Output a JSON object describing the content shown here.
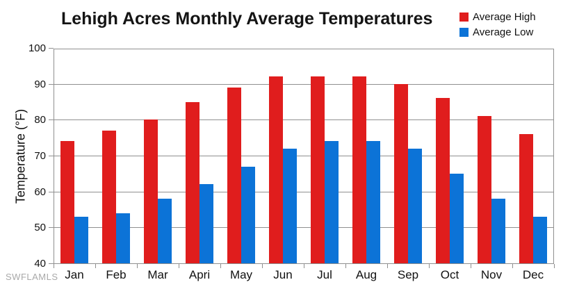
{
  "title": "Lehigh Acres Monthly Average Temperatures",
  "watermark": "SWFLAMLS",
  "chart_data": {
    "type": "bar",
    "title": "Lehigh Acres Monthly Average Temperatures",
    "xlabel": "",
    "ylabel": "Temperature (°F)",
    "categories": [
      "Jan",
      "Feb",
      "Mar",
      "Apri",
      "May",
      "Jun",
      "Jul",
      "Aug",
      "Sep",
      "Oct",
      "Nov",
      "Dec"
    ],
    "series": [
      {
        "name": "Average High",
        "color": "#e01d1d",
        "values": [
          74,
          77,
          80,
          85,
          89,
          92,
          92,
          92,
          90,
          86,
          81,
          76
        ]
      },
      {
        "name": "Average Low",
        "color": "#0c73d7",
        "values": [
          53,
          54,
          58,
          62,
          67,
          72,
          74,
          74,
          72,
          65,
          58,
          53
        ]
      }
    ],
    "ylim": [
      40,
      100
    ],
    "ytick_step": 10,
    "yticks": [
      40,
      50,
      60,
      70,
      80,
      90,
      100
    ],
    "grid": true,
    "legend_position": "top-right"
  },
  "colors": {
    "grid": "#8f8f8f",
    "axis": "#8f8f8f",
    "bar_high": "#e01d1d",
    "bar_low": "#0c73d7",
    "text": "#111111",
    "watermark": "#a9a9a9"
  }
}
